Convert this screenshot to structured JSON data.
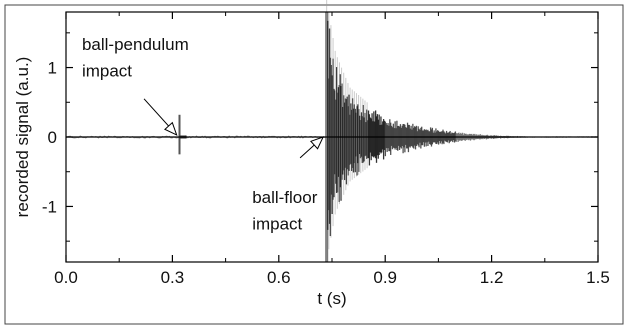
{
  "chart_data": {
    "type": "line",
    "title": "",
    "xlabel": "t (s)",
    "ylabel": "recorded signal (a.u.)",
    "xlim": [
      0.0,
      1.5
    ],
    "ylim": [
      -1.8,
      1.8
    ],
    "x_ticks": [
      0.0,
      0.3,
      0.6,
      0.9,
      1.2,
      1.5
    ],
    "x_tick_labels": [
      "0.0",
      "0.3",
      "0.6",
      "0.9",
      "1.2",
      "1.5"
    ],
    "y_ticks": [
      -1,
      0,
      1
    ],
    "y_tick_labels": [
      "-1",
      "0",
      "1"
    ],
    "grid": false,
    "legend": "none",
    "series_color": "#000000",
    "baseline": 0,
    "events": [
      {
        "t": 0.32,
        "peak": 0.32,
        "trough": -0.25,
        "label_line1": "ball-pendulum",
        "label_line2": "impact"
      },
      {
        "t": 0.735,
        "peak": 1.8,
        "trough": -1.8,
        "label_line1": "ball-floor",
        "label_line2": "impact"
      }
    ],
    "decay_envelope": {
      "t": [
        0.735,
        0.76,
        0.8,
        0.85,
        0.9,
        0.95,
        1.0,
        1.05,
        1.1,
        1.15,
        1.2,
        1.25,
        1.3
      ],
      "amplitude": [
        1.8,
        1.1,
        0.65,
        0.45,
        0.32,
        0.24,
        0.17,
        0.12,
        0.08,
        0.05,
        0.03,
        0.02,
        0.01
      ]
    }
  }
}
